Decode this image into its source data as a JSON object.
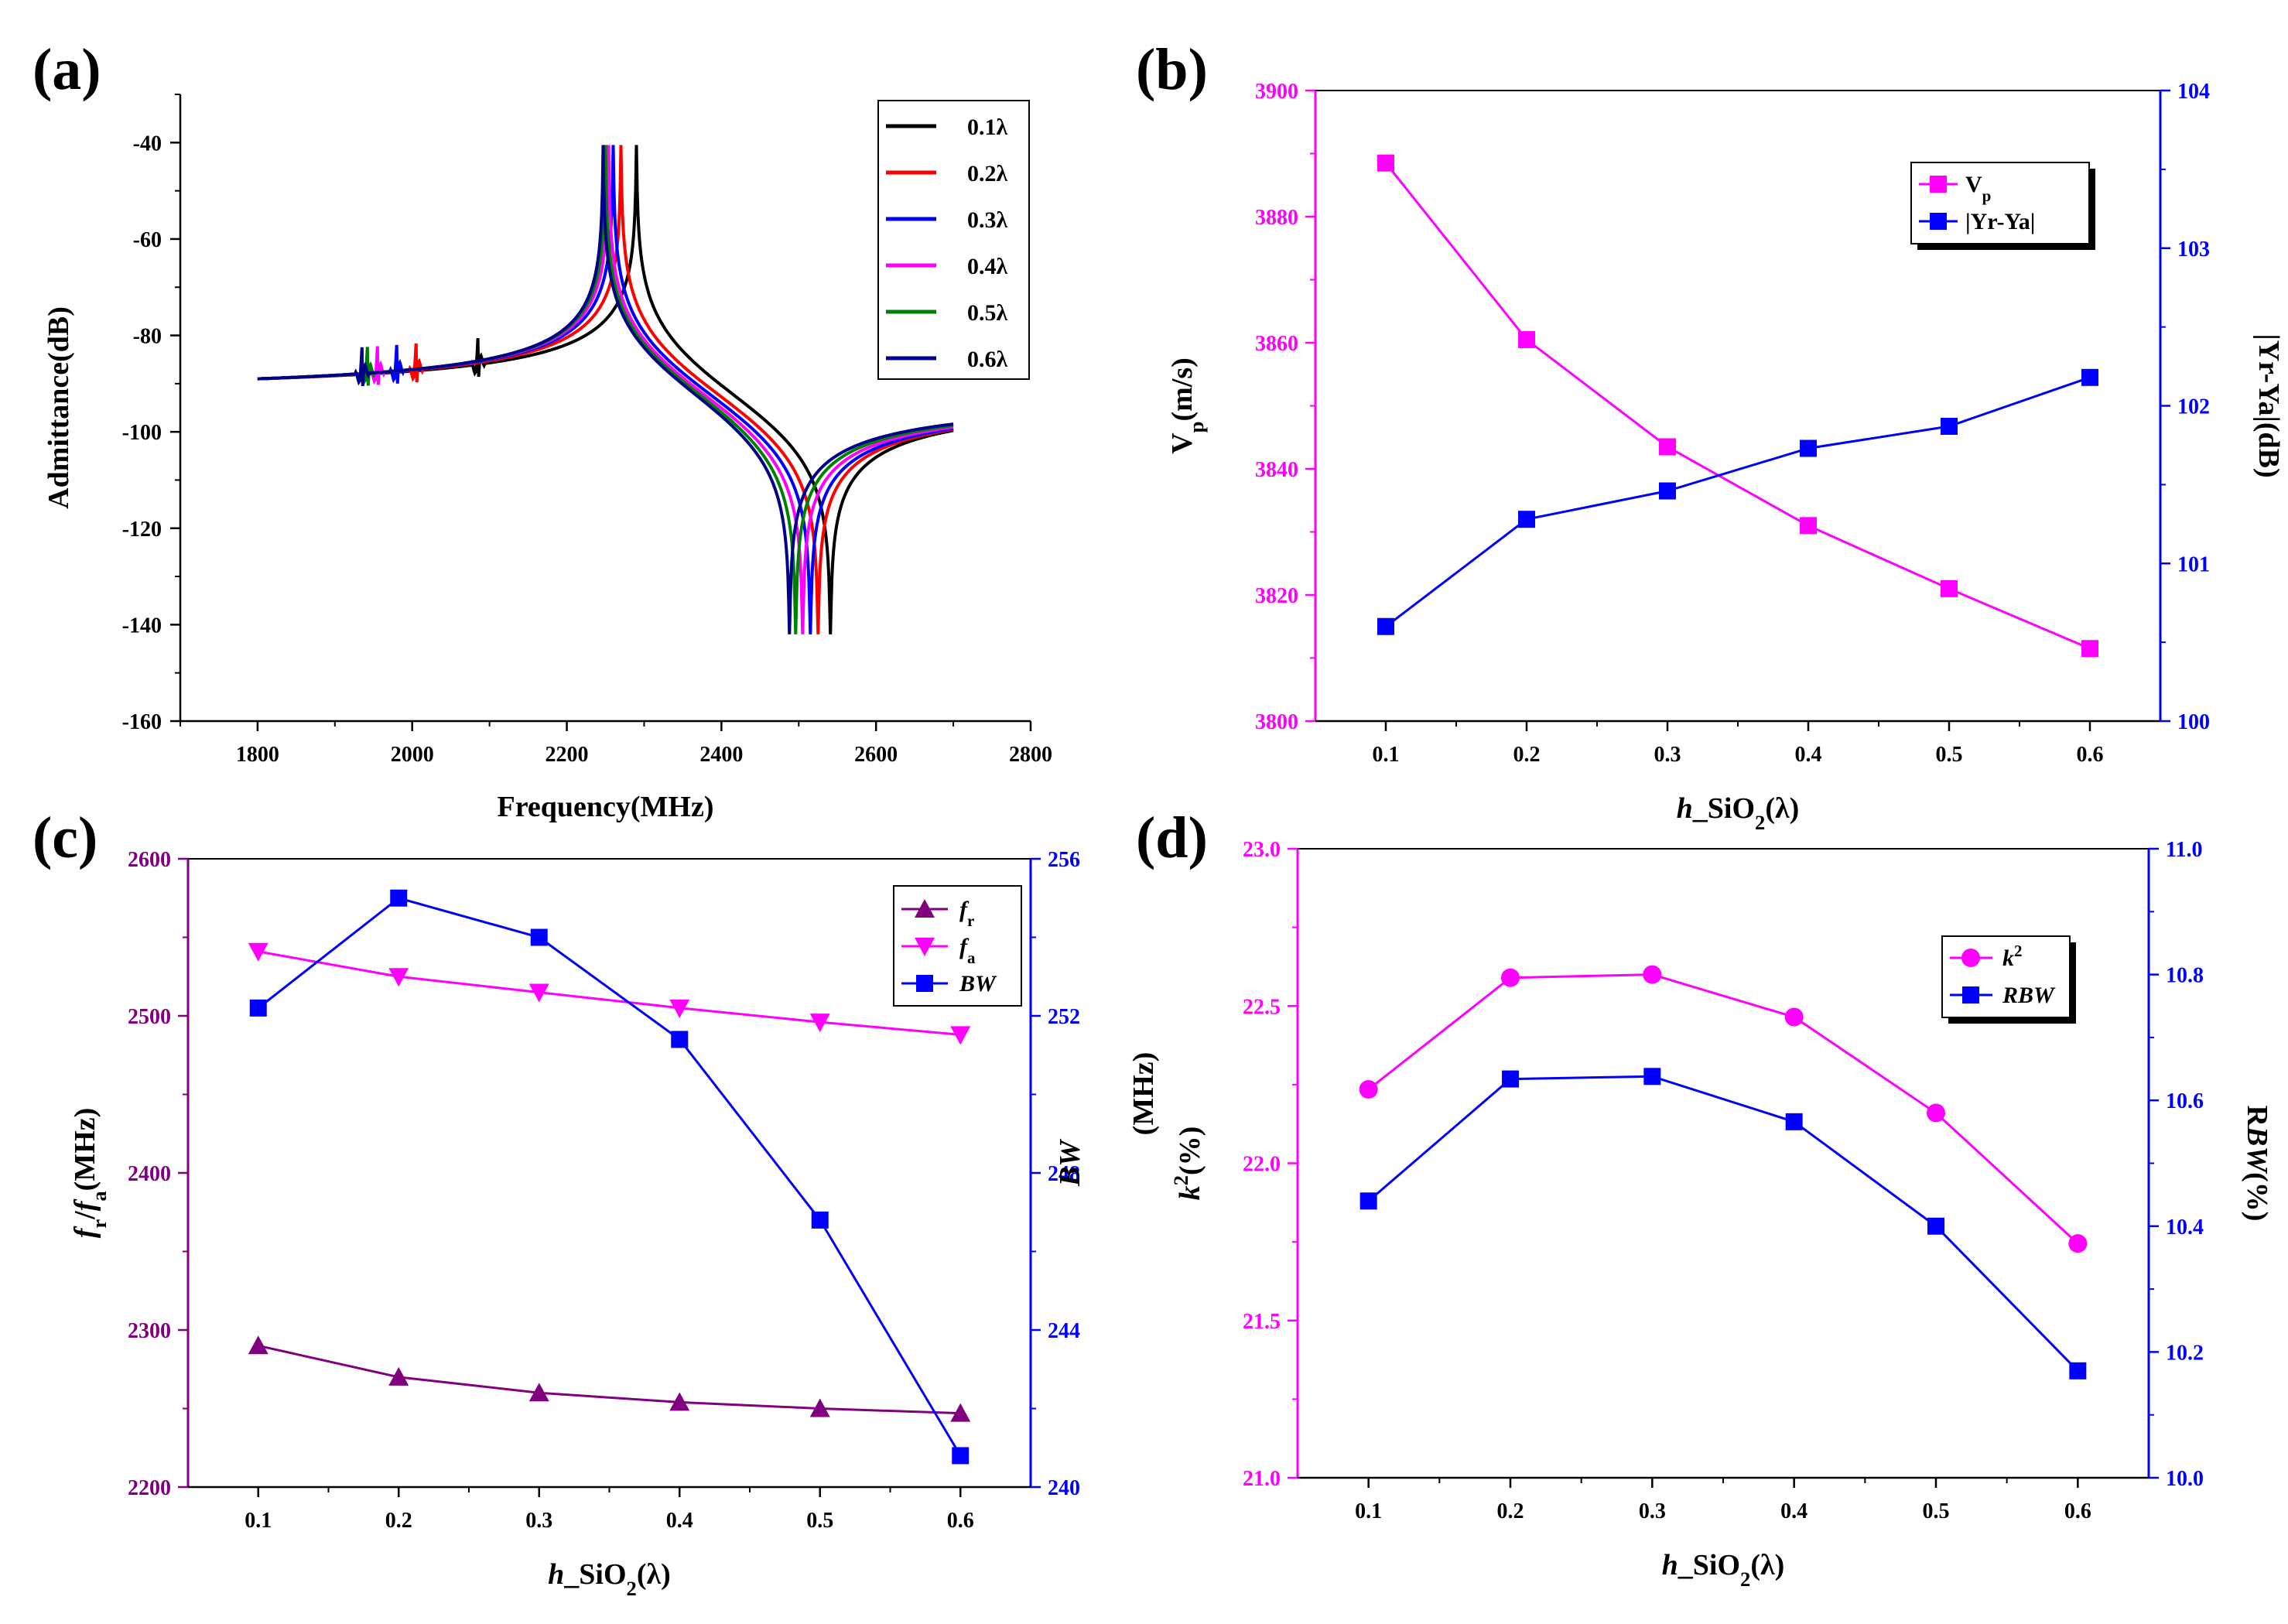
{
  "chart_data": [
    {
      "panel": "(a)",
      "type": "line",
      "xlabel": "Frequency(MHz)",
      "ylabel": "Admittance(dB)",
      "xlim": [
        1700,
        2800
      ],
      "ylim": [
        -160,
        -30
      ],
      "xticks": [
        "1800",
        "2000",
        "2200",
        "2400",
        "2600",
        "2800"
      ],
      "yticks": [
        "-160",
        "-140",
        "-120",
        "-100",
        "-80",
        "-60",
        "-40"
      ],
      "x_range": [
        1800,
        2700
      ],
      "series": [
        {
          "name": "0.1λ",
          "color": "#000000",
          "fs": 2085,
          "fr": 2290,
          "fa": 2541,
          "start": -89,
          "end": -96.5
        },
        {
          "name": "0.2λ",
          "color": "#ff0000",
          "fs": 2005,
          "fr": 2270,
          "fa": 2525,
          "start": -89,
          "end": -96
        },
        {
          "name": "0.3λ",
          "color": "#0000ff",
          "fs": 1980,
          "fr": 2260,
          "fa": 2515,
          "start": -89,
          "end": -95.5
        },
        {
          "name": "0.4λ",
          "color": "#ff00ff",
          "fs": 1955,
          "fr": 2254,
          "fa": 2505,
          "start": -89,
          "end": -95
        },
        {
          "name": "0.5λ",
          "color": "#008000",
          "fs": 1942,
          "fr": 2250,
          "fa": 2496,
          "start": -89,
          "end": -94.5
        },
        {
          "name": "0.6λ",
          "color": "#00008b",
          "fs": 1935,
          "fr": 2247,
          "fa": 2488,
          "start": -89,
          "end": -93
        }
      ]
    },
    {
      "panel": "(b)",
      "type": "line",
      "xlabel_main": "h",
      "xlabel_rest": "_SiO",
      "xlabel_sub": "2",
      "xlabel_tail": "(λ)",
      "ylabel_left": "V",
      "ylabel_left_sub": "p",
      "ylabel_left_tail": "(m/s)",
      "ylabel_right": "|Yr-Ya|(dB)",
      "categories": [
        "0.1",
        "0.2",
        "0.3",
        "0.4",
        "0.5",
        "0.6"
      ],
      "xlim": [
        0.05,
        0.65
      ],
      "ylim_left": [
        3800,
        3900
      ],
      "ylim_right": [
        100,
        104
      ],
      "yticks_left": [
        "3800",
        "3820",
        "3840",
        "3860",
        "3880",
        "3900"
      ],
      "yticks_right": [
        "100",
        "101",
        "102",
        "103",
        "104"
      ],
      "series": [
        {
          "name": "V",
          "name_sub": "p",
          "axis": "left",
          "color": "#ff00ff",
          "marker": "square",
          "values": [
            3888.5,
            3860.5,
            3843.5,
            3831,
            3821,
            3811.5
          ]
        },
        {
          "name": "|Yr-Ya|",
          "name_sub": "",
          "axis": "right",
          "color": "#0000ff",
          "marker": "square",
          "values": [
            100.6,
            101.28,
            101.46,
            101.73,
            101.87,
            102.18
          ]
        }
      ]
    },
    {
      "panel": "(c)",
      "type": "line",
      "xlabel_main": "h",
      "xlabel_rest": "_SiO",
      "xlabel_sub": "2",
      "xlabel_tail": "(λ)",
      "ylabel_left_parts": [
        "f",
        "r",
        "/",
        "f",
        "a",
        "(MHz)"
      ],
      "ylabel_right": "BW",
      "ylabel_right_tail": "(MHz)",
      "categories": [
        "0.1",
        "0.2",
        "0.3",
        "0.4",
        "0.5",
        "0.6"
      ],
      "xlim": [
        0.05,
        0.65
      ],
      "ylim_left": [
        2200,
        2600
      ],
      "ylim_right": [
        240,
        256
      ],
      "yticks_left": [
        "2200",
        "2300",
        "2400",
        "2500",
        "2600"
      ],
      "yticks_right": [
        "240",
        "244",
        "248",
        "252",
        "256"
      ],
      "series": [
        {
          "name": "f",
          "name_sub": "r",
          "axis": "left",
          "color": "#800080",
          "marker": "triangle-up",
          "values": [
            2290,
            2270,
            2260,
            2254,
            2250,
            2247
          ]
        },
        {
          "name": "f",
          "name_sub": "a",
          "axis": "left",
          "color": "#ff00ff",
          "marker": "triangle-down",
          "values": [
            2541,
            2525,
            2515,
            2505,
            2496,
            2488
          ]
        },
        {
          "name": "BW",
          "name_sub": "",
          "axis": "right",
          "color": "#0000ff",
          "marker": "square",
          "values": [
            252.2,
            255.0,
            254.0,
            251.4,
            246.8,
            240.8
          ]
        }
      ]
    },
    {
      "panel": "(d)",
      "type": "line",
      "xlabel_main": "h",
      "xlabel_rest": "_SiO",
      "xlabel_sub": "2",
      "xlabel_tail": "(λ)",
      "ylabel_left": "k",
      "ylabel_left_sup": "2",
      "ylabel_left_tail": "(%)",
      "ylabel_right_pre": "R",
      "ylabel_right": "BW",
      "ylabel_right_tail": "(%)",
      "categories": [
        "0.1",
        "0.2",
        "0.3",
        "0.4",
        "0.5",
        "0.6"
      ],
      "xlim": [
        0.05,
        0.65
      ],
      "ylim_left": [
        21.0,
        23.0
      ],
      "ylim_right": [
        10.0,
        11.0
      ],
      "yticks_left": [
        "21.0",
        "21.5",
        "22.0",
        "22.5",
        "23.0"
      ],
      "yticks_right": [
        "10.0",
        "10.2",
        "10.4",
        "10.6",
        "10.8",
        "11.0"
      ],
      "series": [
        {
          "name": "k",
          "name_sup": "2",
          "axis": "left",
          "color": "#ff00ff",
          "marker": "circle",
          "values": [
            22.235,
            22.59,
            22.6,
            22.465,
            22.16,
            21.745
          ]
        },
        {
          "name": "RBW",
          "name_sup": "",
          "axis": "right",
          "color": "#0000ff",
          "marker": "square",
          "values": [
            10.44,
            10.634,
            10.638,
            10.566,
            10.4,
            10.17
          ]
        }
      ]
    }
  ]
}
